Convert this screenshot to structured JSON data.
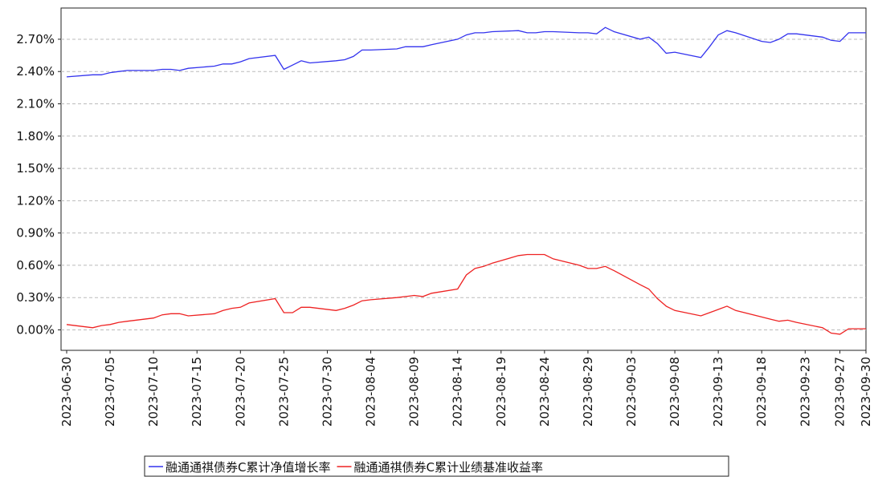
{
  "chart_data": {
    "type": "line",
    "x": [
      "2023-06-30",
      "2023-07-03",
      "2023-07-04",
      "2023-07-05",
      "2023-07-06",
      "2023-07-07",
      "2023-07-10",
      "2023-07-11",
      "2023-07-12",
      "2023-07-13",
      "2023-07-14",
      "2023-07-17",
      "2023-07-18",
      "2023-07-19",
      "2023-07-20",
      "2023-07-21",
      "2023-07-24",
      "2023-07-25",
      "2023-07-26",
      "2023-07-27",
      "2023-07-28",
      "2023-07-31",
      "2023-08-01",
      "2023-08-02",
      "2023-08-03",
      "2023-08-04",
      "2023-08-07",
      "2023-08-08",
      "2023-08-09",
      "2023-08-10",
      "2023-08-11",
      "2023-08-14",
      "2023-08-15",
      "2023-08-16",
      "2023-08-17",
      "2023-08-18",
      "2023-08-21",
      "2023-08-22",
      "2023-08-23",
      "2023-08-24",
      "2023-08-25",
      "2023-08-28",
      "2023-08-29",
      "2023-08-30",
      "2023-08-31",
      "2023-09-01",
      "2023-09-04",
      "2023-09-05",
      "2023-09-06",
      "2023-09-07",
      "2023-09-08",
      "2023-09-11",
      "2023-09-12",
      "2023-09-13",
      "2023-09-14",
      "2023-09-15",
      "2023-09-18",
      "2023-09-19",
      "2023-09-20",
      "2023-09-21",
      "2023-09-22",
      "2023-09-25",
      "2023-09-26",
      "2023-09-27",
      "2023-09-28",
      "2023-09-30"
    ],
    "series": [
      {
        "name": "融通通祺债券C累计净值增长率",
        "color": "#3333ee",
        "values": [
          2.35,
          2.37,
          2.37,
          2.39,
          2.4,
          2.41,
          2.41,
          2.42,
          2.42,
          2.41,
          2.43,
          2.45,
          2.47,
          2.47,
          2.49,
          2.52,
          2.55,
          2.42,
          2.46,
          2.5,
          2.48,
          2.5,
          2.51,
          2.54,
          2.6,
          2.6,
          2.61,
          2.63,
          2.63,
          2.63,
          2.65,
          2.7,
          2.74,
          2.76,
          2.76,
          2.77,
          2.78,
          2.76,
          2.76,
          2.77,
          2.77,
          2.76,
          2.76,
          2.75,
          2.81,
          2.77,
          2.7,
          2.72,
          2.66,
          2.57,
          2.58,
          2.53,
          2.63,
          2.74,
          2.78,
          2.76,
          2.68,
          2.67,
          2.7,
          2.75,
          2.75,
          2.72,
          2.69,
          2.68,
          2.76,
          2.76
        ]
      },
      {
        "name": "融通通祺债券C累计业绩基准收益率",
        "color": "#ee2222",
        "values": [
          0.05,
          0.02,
          0.04,
          0.05,
          0.07,
          0.08,
          0.11,
          0.14,
          0.15,
          0.15,
          0.13,
          0.15,
          0.18,
          0.2,
          0.21,
          0.25,
          0.29,
          0.16,
          0.16,
          0.21,
          0.21,
          0.18,
          0.2,
          0.23,
          0.27,
          0.28,
          0.3,
          0.31,
          0.32,
          0.31,
          0.34,
          0.38,
          0.51,
          0.57,
          0.59,
          0.62,
          0.69,
          0.7,
          0.7,
          0.7,
          0.66,
          0.6,
          0.57,
          0.57,
          0.59,
          0.55,
          0.42,
          0.38,
          0.29,
          0.22,
          0.18,
          0.13,
          0.16,
          0.19,
          0.22,
          0.18,
          0.12,
          0.1,
          0.08,
          0.09,
          0.07,
          0.02,
          -0.03,
          -0.04,
          0.01,
          0.01
        ]
      }
    ],
    "xlim": [
      "2023-06-30",
      "2023-09-30"
    ],
    "xticks": [
      "2023-06-30",
      "2023-07-05",
      "2023-07-10",
      "2023-07-15",
      "2023-07-20",
      "2023-07-25",
      "2023-07-30",
      "2023-08-04",
      "2023-08-09",
      "2023-08-14",
      "2023-08-19",
      "2023-08-24",
      "2023-08-29",
      "2023-09-03",
      "2023-09-08",
      "2023-09-13",
      "2023-09-18",
      "2023-09-23",
      "2023-09-27",
      "2023-09-30"
    ],
    "ylim": [
      -0.19,
      2.99
    ],
    "yticks": [
      {
        "value": 0,
        "label": "0.00%"
      },
      {
        "value": 0.3,
        "label": "0.30%"
      },
      {
        "value": 0.6,
        "label": "0.60%"
      },
      {
        "value": 0.9,
        "label": "0.90%"
      },
      {
        "value": 1.2,
        "label": "1.20%"
      },
      {
        "value": 1.5,
        "label": "1.50%"
      },
      {
        "value": 1.8,
        "label": "1.80%"
      },
      {
        "value": 2.1,
        "label": "2.10%"
      },
      {
        "value": 2.4,
        "label": "2.40%"
      },
      {
        "value": 2.7,
        "label": "2.70%"
      }
    ],
    "grid": true,
    "legend": "bottom"
  }
}
